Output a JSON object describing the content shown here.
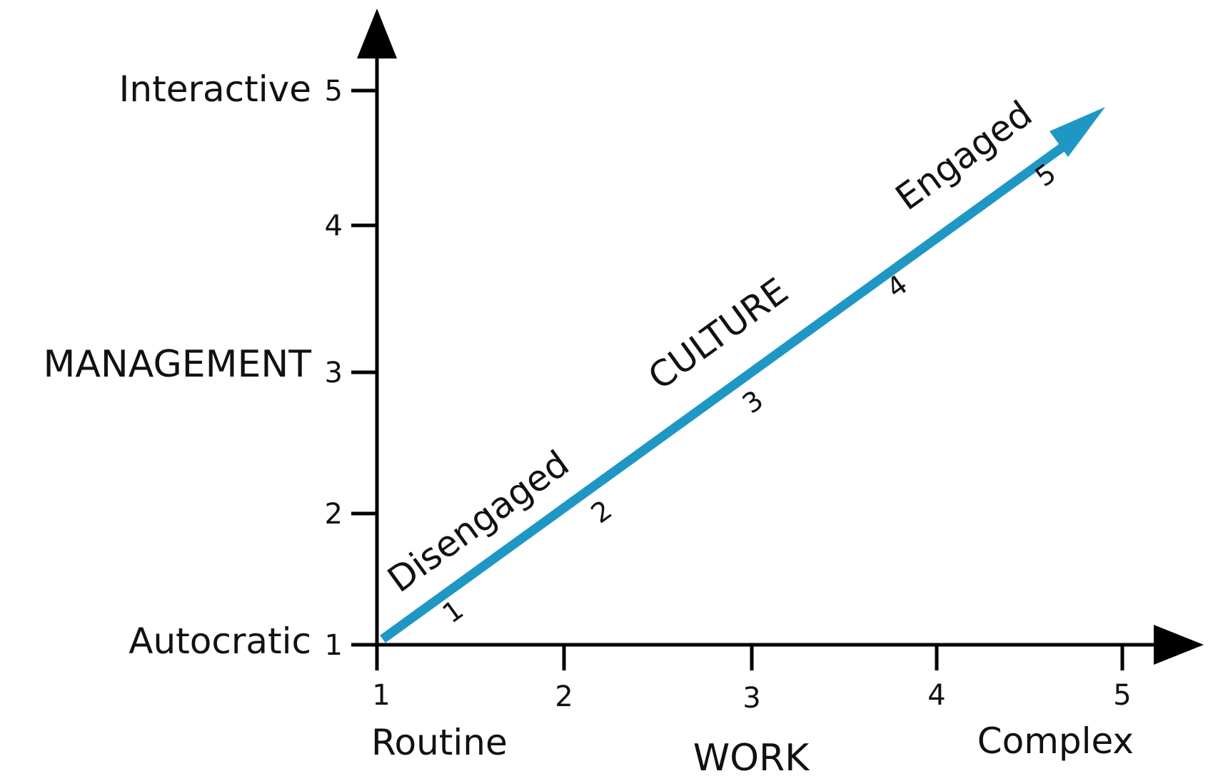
{
  "diagram": {
    "y_axis": {
      "title": "MANAGEMENT",
      "low_label": "Autocratic",
      "high_label": "Interactive",
      "ticks": [
        "1",
        "2",
        "3",
        "4",
        "5"
      ]
    },
    "x_axis": {
      "title": "WORK",
      "low_label": "Routine",
      "high_label": "Complex",
      "ticks": [
        "1",
        "2",
        "3",
        "4",
        "5"
      ]
    },
    "arrow": {
      "color": "#1f97c4",
      "center_label": "CULTURE",
      "start_label": "Disengaged",
      "end_label": "Engaged",
      "steps": [
        "1",
        "2",
        "3",
        "4",
        "5"
      ]
    },
    "axis_color": "#000000"
  }
}
